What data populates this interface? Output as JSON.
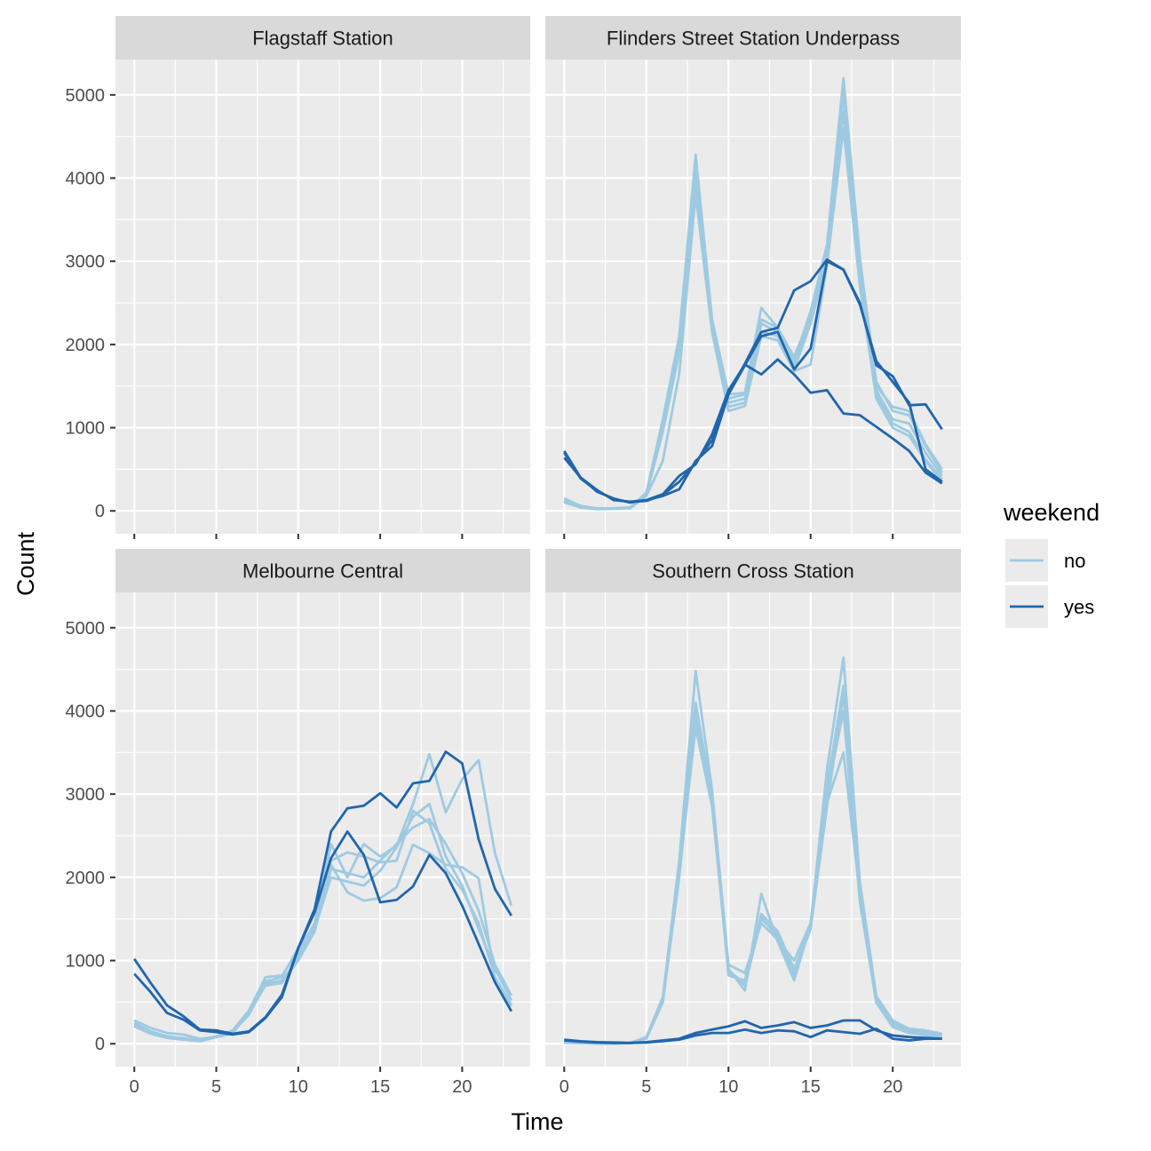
{
  "chart_data": {
    "type": "line",
    "facet_by": "sensor",
    "xlabel": "Time",
    "ylabel": "Count",
    "xlim": [
      0,
      23
    ],
    "ylim": [
      0,
      5500
    ],
    "x_ticks": [
      0,
      5,
      10,
      15,
      20
    ],
    "y_ticks": [
      0,
      1000,
      2000,
      3000,
      4000,
      5000
    ],
    "grid": true,
    "legend": {
      "title": "weekend",
      "position": "right",
      "entries": [
        {
          "label": "no",
          "color": "#9ECAE1"
        },
        {
          "label": "yes",
          "color": "#2166AC"
        }
      ]
    },
    "colors": {
      "no": "#9ECAE1",
      "yes": "#2166AC"
    },
    "x": [
      0,
      1,
      2,
      3,
      4,
      5,
      6,
      7,
      8,
      9,
      10,
      11,
      12,
      13,
      14,
      15,
      16,
      17,
      18,
      19,
      20,
      21,
      22,
      23
    ],
    "panels": [
      {
        "title": "Flagstaff Station",
        "series": []
      },
      {
        "title": "Flinders Street Station Underpass",
        "series": [
          {
            "weekend": "no",
            "values": [
              150,
              60,
              30,
              30,
              40,
              220,
              1100,
              2100,
              4280,
              2300,
              1400,
              1420,
              2440,
              2200,
              1800,
              2400,
              3200,
              5200,
              3050,
              1500,
              1250,
              1200,
              800,
              500
            ]
          },
          {
            "weekend": "no",
            "values": [
              120,
              50,
              25,
              30,
              40,
              200,
              1000,
              2000,
              4100,
              2250,
              1300,
              1350,
              2250,
              2150,
              1750,
              2300,
              3100,
              5000,
              2950,
              1450,
              1100,
              1050,
              700,
              420
            ]
          },
          {
            "weekend": "no",
            "values": [
              100,
              45,
              25,
              25,
              35,
              190,
              950,
              1900,
              3950,
              2200,
              1250,
              1300,
              2150,
              2100,
              1700,
              2250,
              3000,
              4800,
              2850,
              1400,
              1050,
              950,
              620,
              380
            ]
          },
          {
            "weekend": "no",
            "values": [
              110,
              40,
              20,
              25,
              30,
              180,
              600,
              1650,
              3800,
              2150,
              1200,
              1260,
              2100,
              2050,
              1680,
              1760,
              2950,
              4600,
              2700,
              1350,
              1000,
              900,
              600,
              350
            ]
          },
          {
            "weekend": "no",
            "values": [
              130,
              50,
              30,
              30,
              40,
              210,
              1050,
              2050,
              4200,
              2250,
              1350,
              1400,
              2300,
              2200,
              1850,
              2350,
              3150,
              5100,
              3000,
              1550,
              1200,
              1150,
              780,
              460
            ]
          },
          {
            "weekend": "yes",
            "values": [
              720,
              400,
              250,
              130,
              110,
              130,
              180,
              260,
              600,
              780,
              1400,
              1750,
              2100,
              2150,
              1700,
              1950,
              3000,
              2900,
              2500,
              1750,
              1620,
              1270,
              1280,
              980
            ]
          },
          {
            "weekend": "yes",
            "values": [
              640,
              400,
              230,
              150,
              100,
              130,
              200,
              420,
              560,
              920,
              1450,
              1760,
              1640,
              1820,
              1640,
              1420,
              1450,
              1170,
              1150,
              1010,
              870,
              720,
              460,
              330
            ]
          },
          {
            "weekend": "yes",
            "values": [
              700,
              390,
              240,
              140,
              105,
              120,
              190,
              350,
              580,
              850,
              1420,
              1770,
              2150,
              2200,
              2650,
              2760,
              3020,
              2900,
              2480,
              1800,
              1550,
              1300,
              500,
              350
            ]
          }
        ]
      },
      {
        "title": "Melbourne Central",
        "series": [
          {
            "weekend": "no",
            "values": [
              280,
              190,
              130,
              110,
              60,
              80,
              120,
              400,
              800,
              820,
              1100,
              1450,
              2400,
              2000,
              2400,
              2250,
              2380,
              2880,
              3480,
              2780,
              3180,
              3410,
              2290,
              1660
            ]
          },
          {
            "weekend": "no",
            "values": [
              240,
              140,
              80,
              70,
              40,
              90,
              140,
              380,
              730,
              750,
              1000,
              1350,
              2150,
              1820,
              1720,
              1750,
              1880,
              2390,
              2290,
              2150,
              2120,
              1990,
              780,
              450
            ]
          },
          {
            "weekend": "no",
            "values": [
              220,
              130,
              80,
              60,
              30,
              80,
              150,
              370,
              700,
              730,
              1050,
              1380,
              2000,
              1950,
              1900,
              2080,
              2360,
              2730,
              2880,
              2250,
              1900,
              1380,
              900,
              520
            ]
          },
          {
            "weekend": "no",
            "values": [
              250,
              150,
              90,
              60,
              40,
              90,
              160,
              400,
              750,
              800,
              1150,
              1420,
              2100,
              2050,
              2000,
              2200,
              2400,
              2600,
              2700,
              2400,
              2050,
              1600,
              950,
              580
            ]
          },
          {
            "weekend": "no",
            "values": [
              210,
              120,
              70,
              50,
              30,
              80,
              140,
              350,
              720,
              760,
              1020,
              1360,
              2200,
              2300,
              2250,
              2180,
              2200,
              2800,
              2650,
              2100,
              1850,
              1450,
              800,
              470
            ]
          },
          {
            "weekend": "yes",
            "values": [
              1020,
              730,
              460,
              330,
              170,
              160,
              120,
              150,
              320,
              590,
              1150,
              1620,
              2550,
              2830,
              2860,
              3010,
              2840,
              3130,
              3160,
              3510,
              3370,
              2460,
              1860,
              1540
            ]
          },
          {
            "weekend": "yes",
            "values": [
              840,
              620,
              370,
              290,
              160,
              140,
              110,
              140,
              310,
              560,
              1150,
              1580,
              2230,
              2550,
              2270,
              1700,
              1730,
              1890,
              2270,
              2050,
              1660,
              1200,
              740,
              390
            ]
          }
        ]
      },
      {
        "title": "Southern Cross Station",
        "series": [
          {
            "weekend": "no",
            "values": [
              20,
              10,
              5,
              5,
              10,
              80,
              560,
              2200,
              4480,
              3050,
              900,
              640,
              1800,
              1230,
              760,
              1430,
              3300,
              4640,
              1950,
              570,
              280,
              180,
              160,
              120
            ]
          },
          {
            "weekend": "no",
            "values": [
              15,
              10,
              5,
              5,
              10,
              70,
              520,
              2100,
              4100,
              2950,
              860,
              700,
              1500,
              1320,
              830,
              1420,
              2900,
              3500,
              1800,
              520,
              230,
              150,
              120,
              90
            ]
          },
          {
            "weekend": "no",
            "values": [
              15,
              8,
              5,
              5,
              8,
              60,
              500,
              2000,
              3900,
              2900,
              820,
              760,
              1560,
              1350,
              900,
              1400,
              3000,
              4000,
              1700,
              500,
              200,
              130,
              110,
              80
            ]
          },
          {
            "weekend": "no",
            "values": [
              18,
              10,
              5,
              5,
              10,
              75,
              540,
              2150,
              4000,
              3000,
              950,
              850,
              1450,
              1250,
              1000,
              1450,
              3100,
              4300,
              1850,
              550,
              260,
              170,
              140,
              100
            ]
          },
          {
            "weekend": "no",
            "values": [
              12,
              8,
              5,
              5,
              8,
              65,
              510,
              2050,
              3800,
              2850,
              880,
              720,
              1520,
              1280,
              850,
              1380,
              2850,
              4200,
              1750,
              490,
              210,
              140,
              100,
              70
            ]
          },
          {
            "weekend": "yes",
            "values": [
              50,
              30,
              20,
              15,
              10,
              20,
              40,
              60,
              130,
              170,
              210,
              270,
              190,
              220,
              260,
              190,
              220,
              280,
              280,
              160,
              100,
              80,
              70,
              60
            ]
          },
          {
            "weekend": "yes",
            "values": [
              40,
              25,
              15,
              10,
              10,
              15,
              30,
              50,
              100,
              130,
              130,
              170,
              130,
              160,
              150,
              80,
              160,
              140,
              120,
              180,
              60,
              40,
              60,
              60
            ]
          }
        ]
      }
    ]
  }
}
